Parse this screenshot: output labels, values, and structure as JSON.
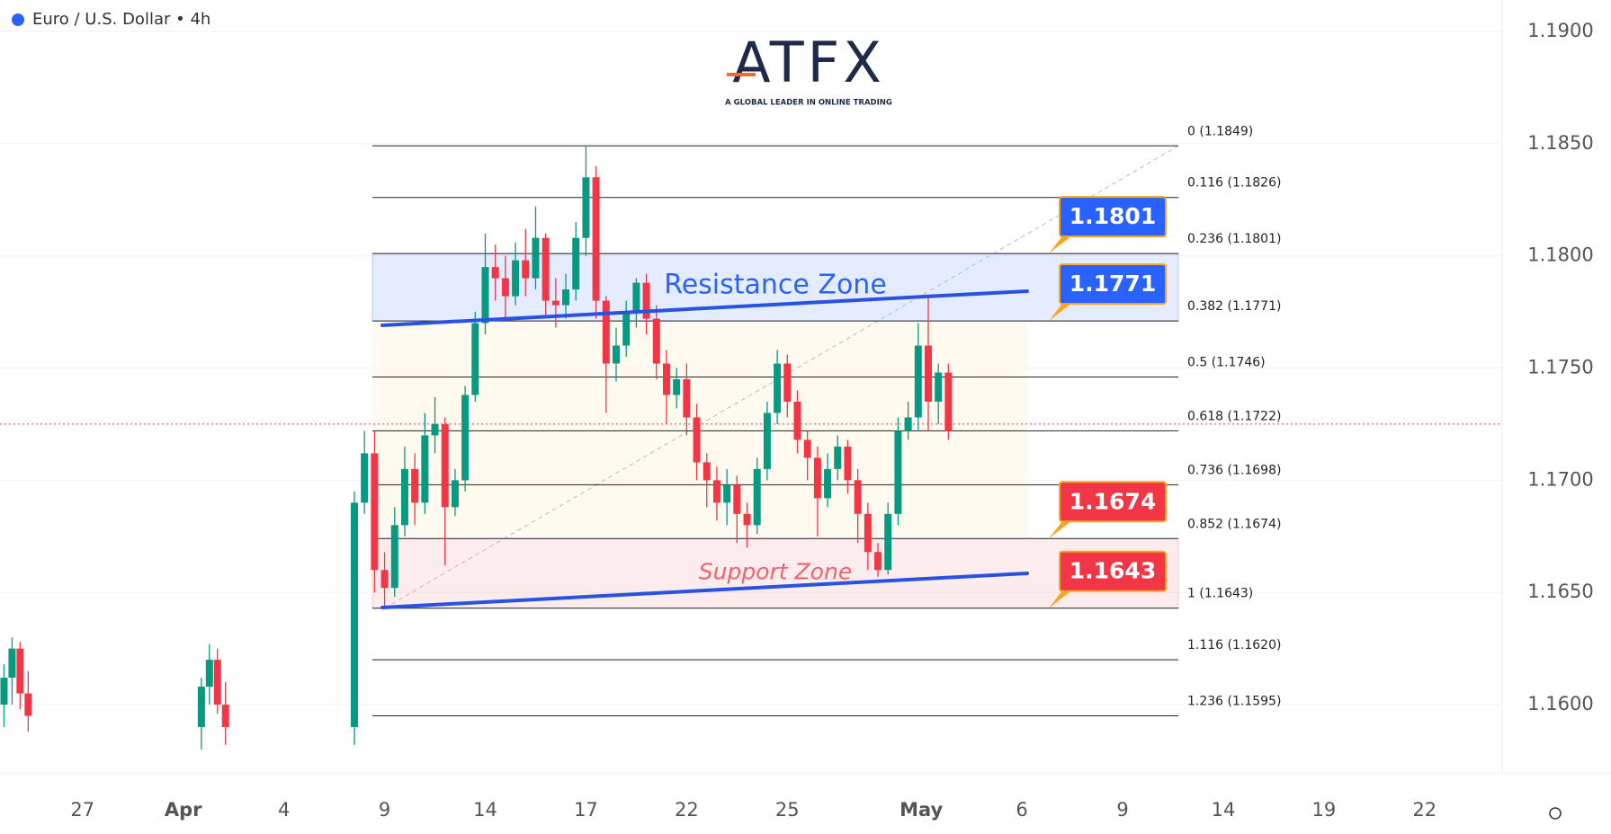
{
  "title": "Euro / U.S. Dollar • 4h",
  "logo": {
    "name": "ATFX",
    "tagline": "A GLOBAL LEADER IN ONLINE TRADING"
  },
  "chart_data": {
    "type": "candlestick",
    "x": [
      -0.78,
      -0.7,
      -0.62,
      -0.54,
      1.18,
      1.26,
      1.34,
      1.42,
      2.7,
      2.8,
      2.9,
      3.0,
      3.1,
      3.2,
      3.3,
      3.4,
      3.5,
      3.6,
      3.7,
      3.8,
      3.9,
      4.0,
      4.1,
      4.2,
      4.3,
      4.4,
      4.5,
      4.6,
      4.7,
      4.8,
      4.9,
      5.0,
      5.1,
      5.2,
      5.3,
      5.4,
      5.5,
      5.6,
      5.7,
      5.8,
      5.9,
      6.0,
      6.1,
      6.2,
      6.3,
      6.4,
      6.5,
      6.6,
      6.7,
      6.8,
      6.9,
      7.0,
      7.1,
      7.2,
      7.3,
      7.4,
      7.5,
      7.6,
      7.7,
      7.8,
      7.9,
      8.0,
      8.1,
      8.2,
      8.3,
      8.4,
      8.5,
      8.6
    ],
    "open": [
      1.16,
      1.1612,
      1.1625,
      1.1605,
      1.159,
      1.1608,
      1.162,
      1.16,
      1.159,
      1.169,
      1.1712,
      1.166,
      1.1652,
      1.168,
      1.1705,
      1.169,
      1.172,
      1.1725,
      1.1688,
      1.17,
      1.1738,
      1.177,
      1.1795,
      1.179,
      1.1782,
      1.1798,
      1.179,
      1.1808,
      1.178,
      1.1778,
      1.1785,
      1.1808,
      1.1835,
      1.178,
      1.1752,
      1.176,
      1.1775,
      1.1788,
      1.1772,
      1.1752,
      1.1738,
      1.1745,
      1.1728,
      1.1708,
      1.17,
      1.169,
      1.1698,
      1.1685,
      1.168,
      1.1705,
      1.173,
      1.1752,
      1.1735,
      1.1718,
      1.171,
      1.1692,
      1.1705,
      1.1715,
      1.17,
      1.1685,
      1.1668,
      1.166,
      1.1685,
      1.1722,
      1.1728,
      1.176,
      1.1735,
      1.1748
    ],
    "high": [
      1.1618,
      1.163,
      1.1628,
      1.1615,
      1.1612,
      1.1627,
      1.1625,
      1.161,
      1.1695,
      1.1722,
      1.1722,
      1.1668,
      1.1688,
      1.1715,
      1.1712,
      1.173,
      1.1737,
      1.1728,
      1.1705,
      1.1742,
      1.1775,
      1.181,
      1.1805,
      1.18,
      1.1806,
      1.1812,
      1.1822,
      1.181,
      1.179,
      1.1792,
      1.1815,
      1.1849,
      1.184,
      1.1782,
      1.1768,
      1.178,
      1.179,
      1.1792,
      1.1778,
      1.1758,
      1.175,
      1.1752,
      1.1734,
      1.1712,
      1.1706,
      1.1705,
      1.1702,
      1.169,
      1.171,
      1.1735,
      1.1758,
      1.1756,
      1.174,
      1.1722,
      1.1715,
      1.1712,
      1.172,
      1.1718,
      1.1705,
      1.169,
      1.1672,
      1.169,
      1.1728,
      1.1735,
      1.177,
      1.1782,
      1.1752,
      1.1752
    ],
    "low": [
      1.159,
      1.16,
      1.1598,
      1.1588,
      1.158,
      1.16,
      1.1596,
      1.1582,
      1.1582,
      1.1685,
      1.165,
      1.1643,
      1.1648,
      1.1675,
      1.168,
      1.1685,
      1.1712,
      1.1662,
      1.1684,
      1.1695,
      1.1735,
      1.1765,
      1.178,
      1.1772,
      1.1778,
      1.1782,
      1.1785,
      1.1772,
      1.1768,
      1.1772,
      1.178,
      1.18,
      1.1772,
      1.173,
      1.1744,
      1.1755,
      1.1768,
      1.1765,
      1.1745,
      1.1725,
      1.1732,
      1.172,
      1.17,
      1.1688,
      1.1682,
      1.168,
      1.1672,
      1.167,
      1.1676,
      1.17,
      1.1725,
      1.1728,
      1.1712,
      1.17,
      1.1675,
      1.1688,
      1.17,
      1.1694,
      1.1672,
      1.166,
      1.1657,
      1.1658,
      1.168,
      1.1718,
      1.1722,
      1.1722,
      1.1725,
      1.1718
    ],
    "close": [
      1.1612,
      1.1625,
      1.1605,
      1.1595,
      1.1608,
      1.162,
      1.16,
      1.159,
      1.169,
      1.1712,
      1.166,
      1.1652,
      1.168,
      1.1705,
      1.169,
      1.172,
      1.1725,
      1.1688,
      1.17,
      1.1738,
      1.177,
      1.1795,
      1.179,
      1.1782,
      1.1798,
      1.179,
      1.1808,
      1.178,
      1.1778,
      1.1785,
      1.1808,
      1.1835,
      1.178,
      1.1752,
      1.176,
      1.1775,
      1.1788,
      1.1772,
      1.1752,
      1.1738,
      1.1745,
      1.1728,
      1.1708,
      1.17,
      1.169,
      1.1698,
      1.1685,
      1.168,
      1.1705,
      1.173,
      1.1752,
      1.1735,
      1.1718,
      1.171,
      1.1692,
      1.1705,
      1.1715,
      1.17,
      1.1685,
      1.1668,
      1.166,
      1.1685,
      1.1722,
      1.1728,
      1.176,
      1.1735,
      1.1748,
      1.1722
    ],
    "up_color": "#089981",
    "down_color": "#f23645",
    "xlim": [
      -0.82,
      14.1
    ],
    "ylim": [
      1.158,
      1.1914
    ],
    "xticks": [
      {
        "value": 0,
        "label": "27"
      },
      {
        "value": 1,
        "label": "Apr"
      },
      {
        "value": 2,
        "label": "4"
      },
      {
        "value": 3,
        "label": "9"
      },
      {
        "value": 4,
        "label": "14"
      },
      {
        "value": 5,
        "label": "17"
      },
      {
        "value": 6,
        "label": "22"
      },
      {
        "value": 7,
        "label": "25"
      },
      {
        "value": 8.33,
        "label": "May"
      },
      {
        "value": 9.33,
        "label": "6"
      },
      {
        "value": 10.33,
        "label": "9"
      },
      {
        "value": 11.33,
        "label": "14"
      },
      {
        "value": 12.33,
        "label": "19"
      },
      {
        "value": 13.33,
        "label": "22"
      }
    ],
    "yticks": [
      {
        "value": 1.16,
        "label": "1.1600"
      },
      {
        "value": 1.165,
        "label": "1.1650"
      },
      {
        "value": 1.17,
        "label": "1.1700"
      },
      {
        "value": 1.175,
        "label": "1.1750"
      },
      {
        "value": 1.18,
        "label": "1.1800"
      },
      {
        "value": 1.185,
        "label": "1.1850"
      },
      {
        "value": 1.19,
        "label": "1.1900"
      }
    ],
    "grid": true,
    "fib_levels": [
      {
        "label": "0 (1.1849)",
        "value": 1.1849
      },
      {
        "label": "0.116 (1.1826)",
        "value": 1.1826
      },
      {
        "label": "0.236 (1.1801)",
        "value": 1.1801
      },
      {
        "label": "0.382 (1.1771)",
        "value": 1.1771
      },
      {
        "label": "0.5 (1.1746)",
        "value": 1.1746
      },
      {
        "label": "0.618 (1.1722)",
        "value": 1.1722
      },
      {
        "label": "0.736 (1.1698)",
        "value": 1.1698
      },
      {
        "label": "0.852 (1.1674)",
        "value": 1.1674
      },
      {
        "label": "1 (1.1643)",
        "value": 1.1643
      },
      {
        "label": "1.116 (1.1620)",
        "value": 1.162
      },
      {
        "label": "1.236 (1.1595)",
        "value": 1.1595
      }
    ],
    "zones": [
      {
        "label": "Resistance Zone",
        "top": 1.1801,
        "bottom": 1.1771,
        "color": "#2962ff"
      },
      {
        "label": "Support Zone",
        "top": 1.1674,
        "bottom": 1.1643,
        "color": "#f0626e"
      }
    ],
    "callouts": [
      {
        "value": 1.1801,
        "color": "#2962ff"
      },
      {
        "value": 1.1771,
        "color": "#2962ff"
      },
      {
        "value": 1.1674,
        "color": "#f23645"
      },
      {
        "value": 1.1643,
        "color": "#f23645"
      }
    ],
    "current_price": 1.1725
  }
}
